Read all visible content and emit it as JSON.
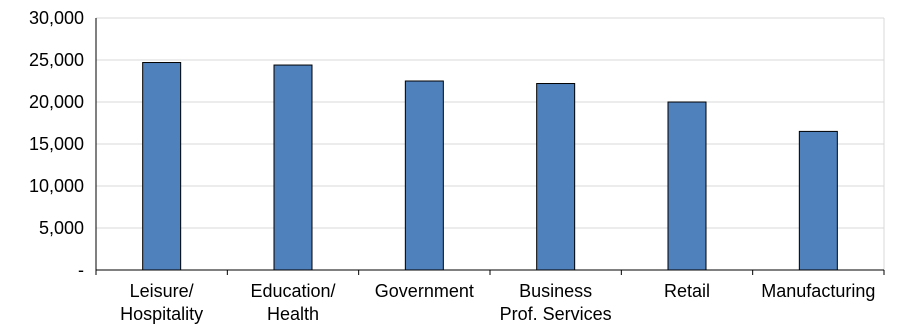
{
  "chart_data": {
    "type": "bar",
    "title": "",
    "xlabel": "",
    "ylabel": "",
    "categories": [
      [
        "Leisure/",
        "Hospitality"
      ],
      [
        "Education/",
        "Health"
      ],
      [
        "Government"
      ],
      [
        "Business",
        "Prof. Services"
      ],
      [
        "Retail"
      ],
      [
        "Manufacturing"
      ]
    ],
    "values": [
      24700,
      24400,
      22500,
      22200,
      20000,
      16500
    ],
    "ylim": [
      0,
      30000
    ],
    "yticks": [
      0,
      5000,
      10000,
      15000,
      20000,
      25000,
      30000
    ],
    "ytick_labels": [
      "-",
      "5,000",
      "10,000",
      "15,000",
      "20,000",
      "25,000",
      "30,000"
    ],
    "grid": true,
    "legend": "none",
    "colors": {
      "bar_fill": "#4f81bd",
      "bar_stroke": "#000000",
      "grid": "#d9d9d9",
      "axis": "#000000"
    }
  }
}
